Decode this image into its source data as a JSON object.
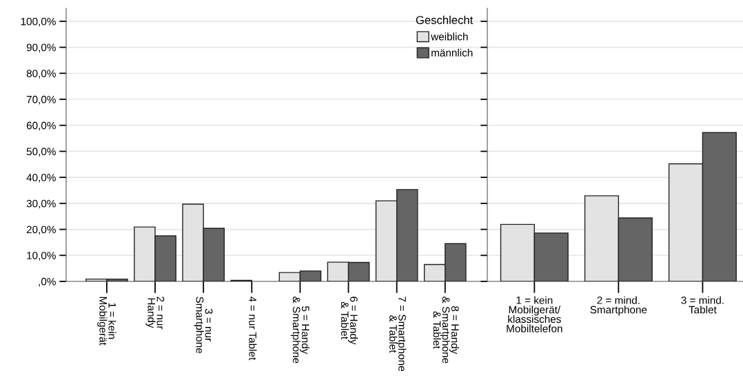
{
  "chart_data": [
    {
      "type": "bar",
      "categories": [
        "1 = kein\nMobilgerät",
        "2 = nur\nHandy",
        "3 = nur\nSmartphone",
        "4 = nur Tablet",
        "5 = Handy\n& Smartphone",
        "6 = Handy\n& Tablet",
        "7 = Smartphone\n& Tablet",
        "8 = Handy\n& Smartphone\n& Tablet"
      ],
      "series": [
        {
          "name": "weiblich",
          "color": "#e3e3e3",
          "values": [
            0.9,
            20.9,
            29.7,
            0.4,
            3.4,
            7.4,
            31.0,
            6.5
          ]
        },
        {
          "name": "männlich",
          "color": "#656565",
          "values": [
            0.9,
            17.5,
            20.4,
            null,
            4.0,
            7.3,
            35.3,
            14.5
          ]
        }
      ],
      "legend_title": "Geschlecht",
      "legend": "top right",
      "grid": "y",
      "ylim": [
        0,
        105
      ],
      "yticks": [
        {
          "value": 0,
          "label": ",0%"
        },
        {
          "value": 10,
          "label": "10,0%"
        },
        {
          "value": 20,
          "label": "20,0%"
        },
        {
          "value": 30,
          "label": "30,0%"
        },
        {
          "value": 40,
          "label": "40,0%"
        },
        {
          "value": 50,
          "label": "50,0%"
        },
        {
          "value": 60,
          "label": "60,0%"
        },
        {
          "value": 70,
          "label": "70,0%"
        },
        {
          "value": 80,
          "label": "80,0%"
        },
        {
          "value": 90,
          "label": "90,0%"
        },
        {
          "value": 100,
          "label": "100,0%"
        }
      ]
    },
    {
      "type": "bar",
      "categories": [
        "1 = kein\nMobilgerät/\nklassisches\nMobiltelefon",
        "2 = mind.\nSmartphone",
        "3 = mind.\nTablet"
      ],
      "series": [
        {
          "color": "#e3e3e3",
          "values": [
            21.9,
            32.9,
            45.2
          ]
        },
        {
          "color": "#656565",
          "values": [
            18.6,
            24.4,
            57.2
          ]
        }
      ],
      "grid": "y",
      "ylim": [
        0,
        105
      ],
      "tick_labels": "x",
      "yticks": [
        {
          "value": 0,
          "label": null
        },
        {
          "value": 10,
          "label": null
        },
        {
          "value": 20,
          "label": null
        },
        {
          "value": 30,
          "label": null
        },
        {
          "value": 40,
          "label": null
        },
        {
          "value": 50,
          "label": null
        },
        {
          "value": 60,
          "label": null
        },
        {
          "value": 70,
          "label": null
        },
        {
          "value": 80,
          "label": null
        },
        {
          "value": 90,
          "label": null
        },
        {
          "value": 100,
          "label": null
        }
      ]
    }
  ]
}
